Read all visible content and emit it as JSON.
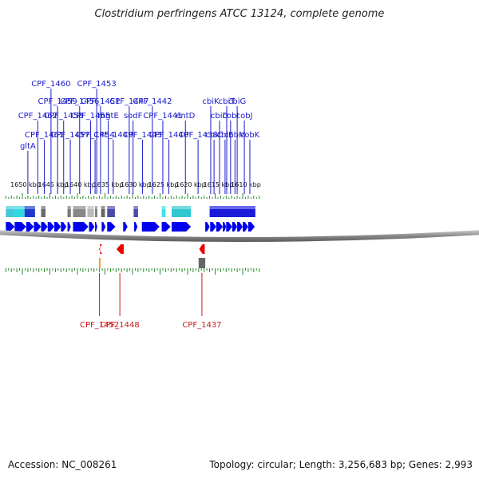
{
  "title": "Clostridium perfringens ATCC 13124, complete genome",
  "accession": "Accession: NC_008261",
  "summary": "Topology: circular; Length: 3,256,683 bp; Genes: 2,993",
  "colors": {
    "forward_gene": "#0000ee",
    "reverse_gene": "#ee0000",
    "forward_label": "#1a1acc",
    "reverse_label": "#cc1a1a",
    "tick": "#2a8a2a",
    "backbone": "#888888"
  },
  "scale_labels": [
    {
      "text": "1650 kbp",
      "kbp": 1650
    },
    {
      "text": "1645 kbp",
      "kbp": 1645
    },
    {
      "text": "1640 kbp",
      "kbp": 1640
    },
    {
      "text": "1635 kbp",
      "kbp": 1635
    },
    {
      "text": "1630 kbp",
      "kbp": 1630
    },
    {
      "text": "1625 kbp",
      "kbp": 1625
    },
    {
      "text": "1620 kbp",
      "kbp": 1620
    },
    {
      "text": "1615 kbp",
      "kbp": 1615
    },
    {
      "text": "1610 kbp",
      "kbp": 1610
    }
  ],
  "forward_labels": [
    {
      "text": "gltA",
      "kbp": 1649.0,
      "row": 0
    },
    {
      "text": "CPF_1462",
      "kbp": 1647.2,
      "row": 2
    },
    {
      "text": "CPF_1461",
      "kbp": 1646.0,
      "row": 1
    },
    {
      "text": "CPF_1460",
      "kbp": 1644.8,
      "row": 4
    },
    {
      "text": "CPF_1459",
      "kbp": 1643.6,
      "row": 3
    },
    {
      "text": "CPF_1458",
      "kbp": 1642.5,
      "row": 2
    },
    {
      "text": "CPF_1457",
      "kbp": 1641.3,
      "row": 1
    },
    {
      "text": "CPF_1456",
      "kbp": 1639.6,
      "row": 3
    },
    {
      "text": "CPF_1455",
      "kbp": 1637.6,
      "row": 2
    },
    {
      "text": "CPF_1454",
      "kbp": 1636.8,
      "row": 1
    },
    {
      "text": "CPF_1453",
      "kbp": 1636.5,
      "row": 4
    },
    {
      "text": "CPF_1451",
      "kbp": 1635.8,
      "row": 3
    },
    {
      "text": "mgtE",
      "kbp": 1634.4,
      "row": 2
    },
    {
      "text": "CPF_1449",
      "kbp": 1633.5,
      "row": 1
    },
    {
      "text": "CPF_1447",
      "kbp": 1630.6,
      "row": 3
    },
    {
      "text": "sodF",
      "kbp": 1629.9,
      "row": 2
    },
    {
      "text": "CPF_1443",
      "kbp": 1628.2,
      "row": 1
    },
    {
      "text": "CPF_1442",
      "kbp": 1626.4,
      "row": 3
    },
    {
      "text": "CPF_1441",
      "kbp": 1624.5,
      "row": 2
    },
    {
      "text": "CPF_1440",
      "kbp": 1623.4,
      "row": 1
    },
    {
      "text": "entD",
      "kbp": 1620.4,
      "row": 2
    },
    {
      "text": "CPF_1438",
      "kbp": 1618.1,
      "row": 1
    },
    {
      "text": "cbiK",
      "kbp": 1615.8,
      "row": 3
    },
    {
      "text": "cbiC",
      "kbp": 1615.2,
      "row": 1
    },
    {
      "text": "cbiD",
      "kbp": 1614.2,
      "row": 2
    },
    {
      "text": "cbiE",
      "kbp": 1613.2,
      "row": 1
    },
    {
      "text": "cbiT",
      "kbp": 1612.9,
      "row": 3
    },
    {
      "text": "cobI",
      "kbp": 1612.2,
      "row": 2
    },
    {
      "text": "cobM",
      "kbp": 1611.4,
      "row": 1
    },
    {
      "text": "cbiG",
      "kbp": 1611.0,
      "row": 3
    },
    {
      "text": "cobJ",
      "kbp": 1609.7,
      "row": 2
    },
    {
      "text": "cobK",
      "kbp": 1608.7,
      "row": 1
    }
  ],
  "reverse_labels": [
    {
      "text": "CPF_1452",
      "kbp": 1636.0
    },
    {
      "text": "CPF_1448",
      "kbp": 1632.3
    },
    {
      "text": "CPF_1437",
      "kbp": 1617.4
    }
  ],
  "forward_genes": [
    {
      "start": 1653.0,
      "end": 1651.4
    },
    {
      "start": 1651.4,
      "end": 1649.3
    },
    {
      "start": 1649.3,
      "end": 1647.9
    },
    {
      "start": 1647.9,
      "end": 1646.6
    },
    {
      "start": 1646.6,
      "end": 1645.4
    },
    {
      "start": 1645.4,
      "end": 1644.2
    },
    {
      "start": 1644.2,
      "end": 1643.0
    },
    {
      "start": 1643.0,
      "end": 1642.0
    },
    {
      "start": 1641.8,
      "end": 1641.2
    },
    {
      "start": 1640.8,
      "end": 1638.0
    },
    {
      "start": 1637.9,
      "end": 1636.9
    },
    {
      "start": 1636.8,
      "end": 1636.4
    },
    {
      "start": 1635.6,
      "end": 1634.9
    },
    {
      "start": 1634.6,
      "end": 1633.1
    },
    {
      "start": 1631.7,
      "end": 1630.9
    },
    {
      "start": 1629.7,
      "end": 1629.1
    },
    {
      "start": 1628.3,
      "end": 1625.1
    },
    {
      "start": 1624.7,
      "end": 1623.1
    },
    {
      "start": 1622.9,
      "end": 1619.4
    },
    {
      "start": 1616.8,
      "end": 1616.0
    },
    {
      "start": 1615.9,
      "end": 1614.8
    },
    {
      "start": 1614.8,
      "end": 1613.6
    },
    {
      "start": 1613.6,
      "end": 1613.0
    },
    {
      "start": 1613.0,
      "end": 1611.9
    },
    {
      "start": 1611.9,
      "end": 1611.0
    },
    {
      "start": 1611.0,
      "end": 1610.0
    },
    {
      "start": 1610.0,
      "end": 1609.0
    },
    {
      "start": 1609.0,
      "end": 1607.8
    }
  ],
  "reverse_genes": [
    {
      "start": 1636.1,
      "end": 1635.9
    },
    {
      "start": 1632.9,
      "end": 1631.6
    },
    {
      "start": 1617.9,
      "end": 1616.9
    }
  ],
  "feature_blocks": [
    {
      "start": 1653.0,
      "end": 1651.5,
      "color": "#40c8d8"
    },
    {
      "start": 1651.5,
      "end": 1649.6,
      "color": "#30d8e0"
    },
    {
      "start": 1649.6,
      "end": 1647.7,
      "color": "#1a3acc"
    },
    {
      "start": 1646.6,
      "end": 1645.8,
      "color": "#6a6a6a"
    },
    {
      "start": 1641.8,
      "end": 1641.2,
      "color": "#777777"
    },
    {
      "start": 1640.8,
      "end": 1638.5,
      "color": "#888888"
    },
    {
      "start": 1638.2,
      "end": 1637.0,
      "color": "#bbbbbb"
    },
    {
      "start": 1636.8,
      "end": 1636.4,
      "color": "#777777"
    },
    {
      "start": 1635.7,
      "end": 1635.0,
      "color": "#666666"
    },
    {
      "start": 1634.6,
      "end": 1633.2,
      "color": "#4a4aaa"
    },
    {
      "start": 1629.8,
      "end": 1629.0,
      "color": "#4a4aaa"
    },
    {
      "start": 1624.7,
      "end": 1624.0,
      "color": "#40e0f0"
    },
    {
      "start": 1622.9,
      "end": 1619.4,
      "color": "#30c8d0"
    },
    {
      "start": 1616.0,
      "end": 1607.7,
      "color": "#1a1add"
    }
  ],
  "reverse_blocks": [
    {
      "start": 1636.1,
      "end": 1635.9,
      "color": "#f0a020"
    },
    {
      "start": 1618.0,
      "end": 1616.8,
      "color": "#666666"
    }
  ]
}
